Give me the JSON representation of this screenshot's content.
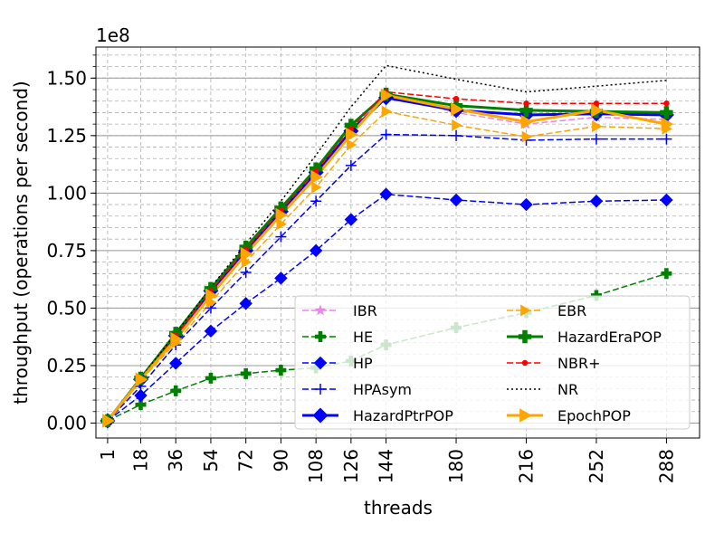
{
  "chart_data": {
    "type": "line",
    "xlabel": "threads",
    "ylabel": "throughput (operations per second)",
    "y_offset_text": "1e8",
    "y_scale": 100000000,
    "x": [
      1,
      18,
      36,
      54,
      72,
      90,
      108,
      126,
      144,
      180,
      216,
      252,
      288
    ],
    "x_tick_labels": [
      "1",
      "18",
      "36",
      "54",
      "72",
      "90",
      "108",
      "126",
      "144",
      "180",
      "216",
      "252",
      "288"
    ],
    "x_range": [
      -5,
      305
    ],
    "ylim": [
      -0.065,
      1.635
    ],
    "y_ticks": [
      0.0,
      0.25,
      0.5,
      0.75,
      1.0,
      1.25,
      1.5
    ],
    "y_tick_labels": [
      "0.00",
      "0.25",
      "0.50",
      "0.75",
      "1.00",
      "1.25",
      "1.50"
    ],
    "grid": "major and minor, dashed",
    "legend_position": "lower-right",
    "legend_columns": 2,
    "series": [
      {
        "name": "IBR",
        "color": "#ee82ee",
        "dash": "dashed",
        "marker": "star",
        "width": 1.5,
        "values": [
          0.01,
          0.19,
          0.38,
          0.57,
          0.75,
          0.92,
          1.09,
          1.27,
          1.43,
          1.35,
          1.3,
          1.33,
          1.32
        ]
      },
      {
        "name": "HE",
        "color": "#008000",
        "dash": "dashed",
        "marker": "plus",
        "width": 1.5,
        "values": [
          0.01,
          0.08,
          0.14,
          0.195,
          0.215,
          0.23,
          0.24,
          0.27,
          0.34,
          0.415,
          0.48,
          0.555,
          0.65
        ]
      },
      {
        "name": "HP",
        "color": "#0000ff",
        "dash": "dashed",
        "marker": "diamond",
        "width": 1.5,
        "values": [
          0.01,
          0.12,
          0.26,
          0.4,
          0.52,
          0.63,
          0.75,
          0.885,
          0.995,
          0.97,
          0.95,
          0.965,
          0.97
        ]
      },
      {
        "name": "HPAsym",
        "color": "#0000ff",
        "dash": "dashed",
        "marker": "thin-plus",
        "width": 1.5,
        "values": [
          0.01,
          0.16,
          0.34,
          0.5,
          0.655,
          0.81,
          0.965,
          1.12,
          1.255,
          1.25,
          1.23,
          1.235,
          1.235
        ]
      },
      {
        "name": "HazardPtrPOP",
        "color": "#0000ff",
        "dash": "solid",
        "marker": "diamond",
        "width": 3,
        "values": [
          0.01,
          0.19,
          0.38,
          0.575,
          0.75,
          0.92,
          1.09,
          1.27,
          1.415,
          1.36,
          1.34,
          1.345,
          1.34
        ]
      },
      {
        "name": "EBR",
        "color": "#ffa500",
        "dash": "dashed",
        "marker": "triangle-right",
        "width": 1.5,
        "values": [
          0.01,
          0.185,
          0.35,
          0.525,
          0.7,
          0.865,
          1.025,
          1.21,
          1.355,
          1.295,
          1.245,
          1.29,
          1.28
        ]
      },
      {
        "name": "HazardEraPOP",
        "color": "#008000",
        "dash": "solid",
        "marker": "plus",
        "width": 3,
        "values": [
          0.01,
          0.195,
          0.39,
          0.585,
          0.765,
          0.935,
          1.105,
          1.295,
          1.43,
          1.38,
          1.36,
          1.355,
          1.35
        ]
      },
      {
        "name": "NBR+",
        "color": "#ff0000",
        "dash": "dashed",
        "marker": "dot",
        "width": 1.5,
        "values": [
          0.01,
          0.19,
          0.38,
          0.575,
          0.755,
          0.925,
          1.095,
          1.28,
          1.44,
          1.41,
          1.39,
          1.39,
          1.39
        ]
      },
      {
        "name": "NR",
        "color": "#000000",
        "dash": "dotted",
        "marker": "none",
        "width": 1.5,
        "values": [
          0.01,
          0.195,
          0.39,
          0.59,
          0.78,
          0.965,
          1.165,
          1.375,
          1.555,
          1.495,
          1.44,
          1.465,
          1.49
        ]
      },
      {
        "name": "EpochPOP",
        "color": "#ffa500",
        "dash": "solid",
        "marker": "triangle-right",
        "width": 3,
        "values": [
          0.01,
          0.19,
          0.365,
          0.555,
          0.735,
          0.905,
          1.07,
          1.255,
          1.425,
          1.365,
          1.31,
          1.36,
          1.3
        ]
      }
    ]
  }
}
